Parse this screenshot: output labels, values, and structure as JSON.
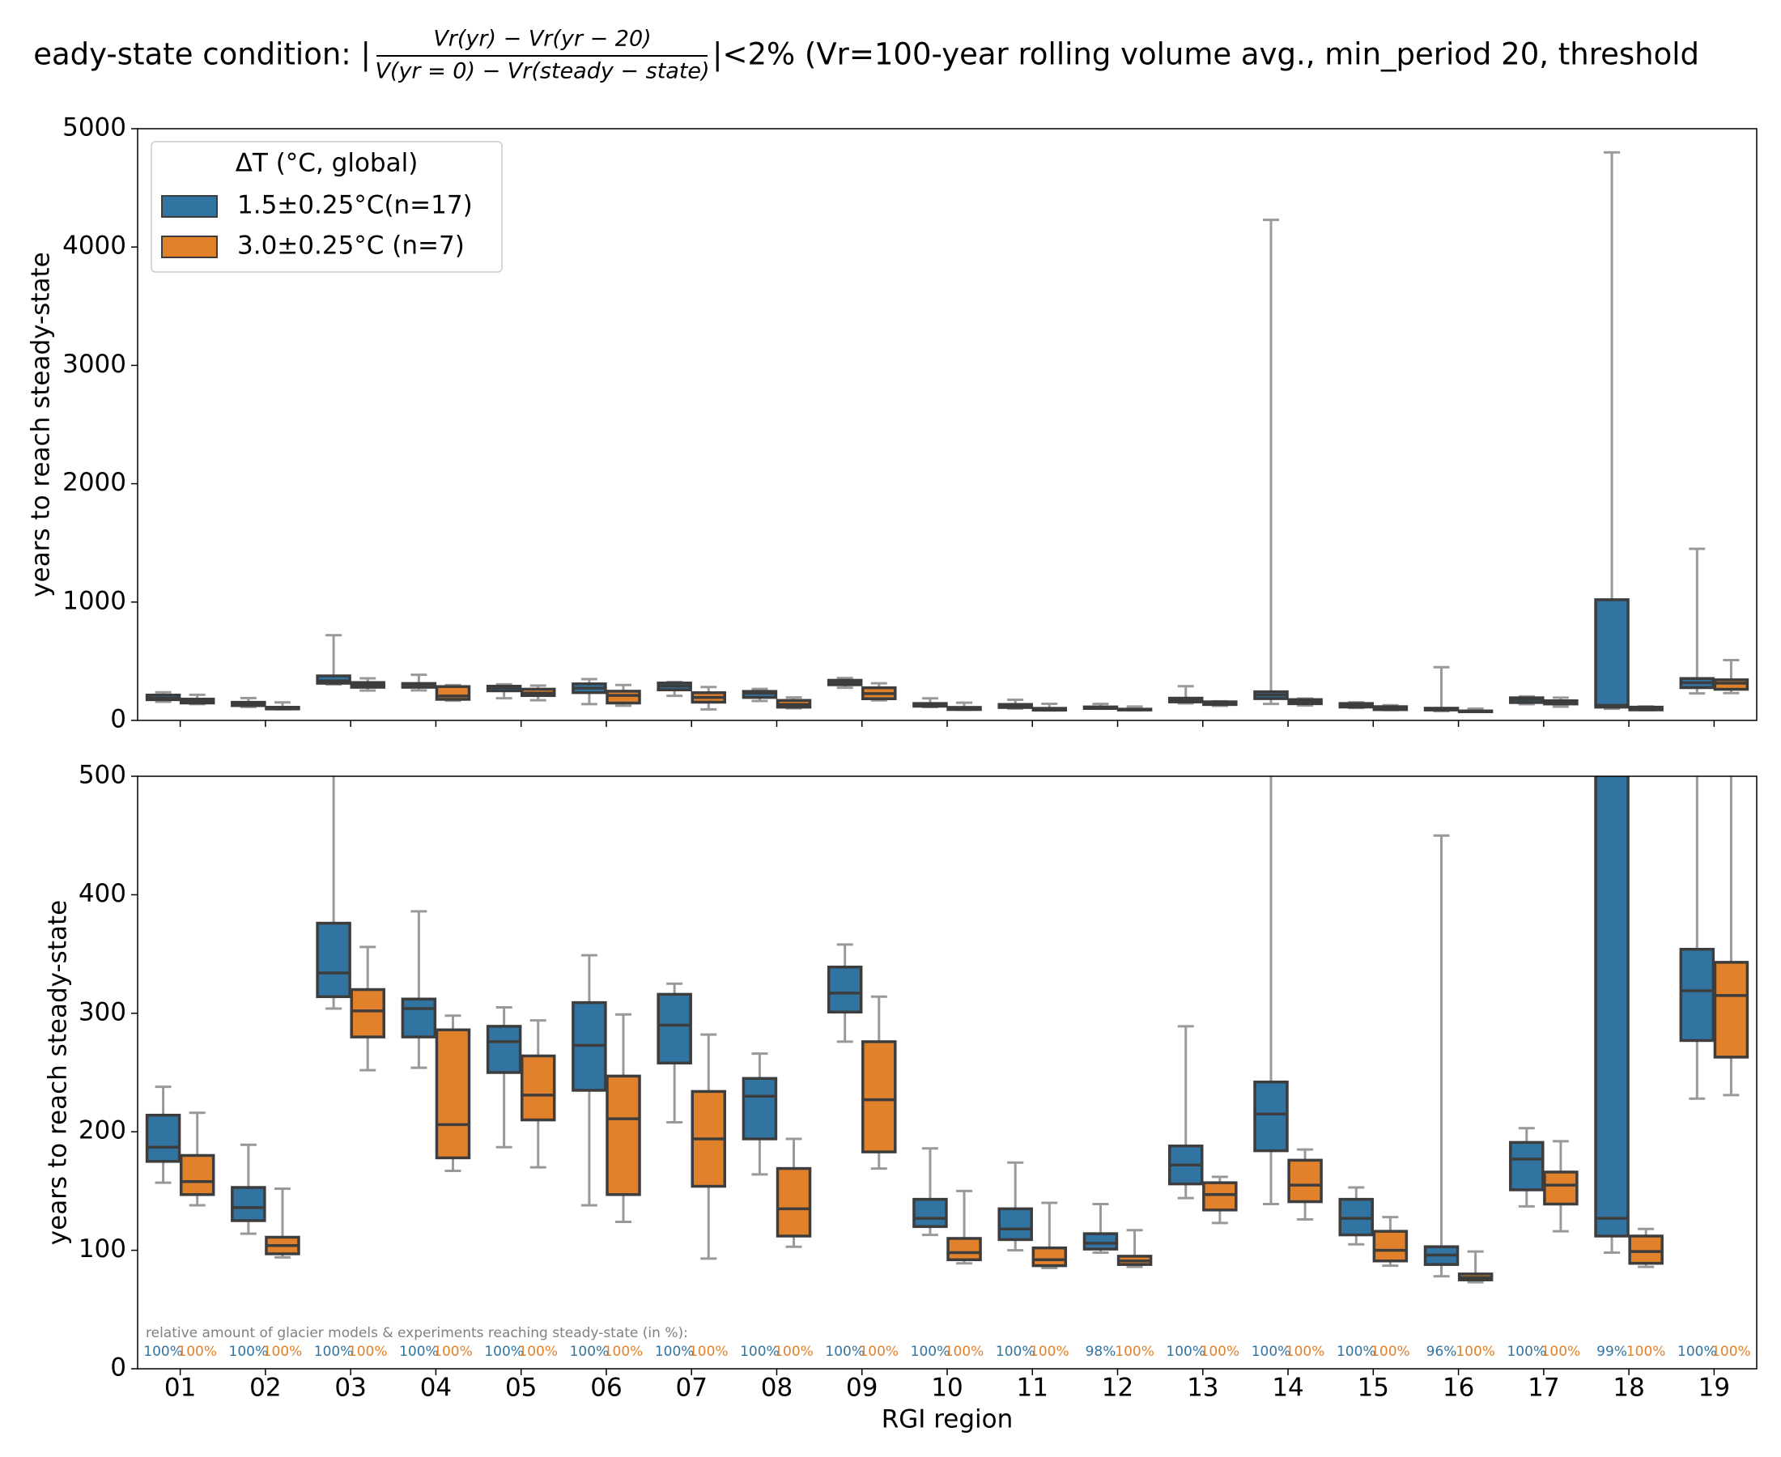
{
  "chart_data": {
    "type": "box",
    "title_prefix": "eady-state condition:  |",
    "title_numerator": "Vr(yr) − Vr(yr − 20)",
    "title_denominator": "V(yr = 0) − Vr(steady − state)",
    "title_suffix": "|<2% (Vr=100-year rolling volume avg., min_period 20, threshold",
    "xlabel": "RGI region",
    "legend_title": "ΔT (°C, global)",
    "legend_position": "upper left",
    "note": "relative amount of glacier models & experiments reaching steady-state (in %):",
    "categories": [
      "01",
      "02",
      "03",
      "04",
      "05",
      "06",
      "07",
      "08",
      "09",
      "10",
      "11",
      "12",
      "13",
      "14",
      "15",
      "16",
      "17",
      "18",
      "19"
    ],
    "panels": [
      {
        "ylabel": "years to reach steady-state",
        "ylim": [
          0,
          5000
        ],
        "yticks": [
          0,
          1000,
          2000,
          3000,
          4000,
          5000
        ]
      },
      {
        "ylabel": "years to reach steady-state",
        "ylim": [
          0,
          500
        ],
        "yticks": [
          0,
          100,
          200,
          300,
          400,
          500
        ]
      }
    ],
    "series": [
      {
        "name": "1.5±0.25°C(n=17)",
        "color": "#3274a1",
        "whislo": [
          157,
          114,
          304,
          254,
          187,
          138,
          208,
          164,
          276,
          113,
          100,
          98,
          144,
          139,
          105,
          78,
          137,
          98,
          228
        ],
        "q1": [
          175,
          125,
          314,
          280,
          250,
          235,
          258,
          194,
          301,
          120,
          109,
          101,
          156,
          184,
          113,
          88,
          151,
          112,
          277
        ],
        "median": [
          187,
          136,
          334,
          304,
          276,
          273,
          290,
          230,
          317,
          127,
          118,
          106,
          172,
          215,
          127,
          96,
          177,
          127,
          319
        ],
        "q3": [
          214,
          153,
          376,
          312,
          289,
          309,
          316,
          245,
          339,
          143,
          135,
          114,
          188,
          242,
          143,
          103,
          191,
          1020,
          354
        ],
        "whishi": [
          238,
          189,
          720,
          386,
          305,
          349,
          325,
          266,
          358,
          186,
          174,
          139,
          289,
          4230,
          153,
          450,
          203,
          4800,
          1450
        ],
        "share_labels": [
          "100%",
          "100%",
          "100%",
          "100%",
          "100%",
          "100%",
          "100%",
          "100%",
          "100%",
          "100%",
          "100%",
          "98%",
          "100%",
          "100%",
          "100%",
          "96%",
          "100%",
          "99%",
          "100%"
        ]
      },
      {
        "name": "3.0±0.25°C (n=7)",
        "color": "#e1812c",
        "whislo": [
          138,
          94,
          252,
          167,
          170,
          124,
          93,
          103,
          169,
          89,
          85,
          86,
          123,
          126,
          87,
          73,
          116,
          86,
          231
        ],
        "q1": [
          147,
          97,
          280,
          178,
          210,
          147,
          154,
          112,
          183,
          92,
          87,
          88,
          134,
          141,
          91,
          75,
          139,
          89,
          263
        ],
        "median": [
          158,
          104,
          302,
          206,
          231,
          211,
          194,
          135,
          227,
          98,
          92,
          91,
          147,
          155,
          100,
          77,
          155,
          99,
          315
        ],
        "q3": [
          180,
          111,
          320,
          286,
          264,
          247,
          234,
          169,
          276,
          110,
          102,
          95,
          157,
          176,
          116,
          80,
          166,
          112,
          343
        ],
        "whishi": [
          216,
          152,
          356,
          298,
          294,
          299,
          282,
          194,
          314,
          150,
          140,
          117,
          162,
          185,
          128,
          99,
          192,
          118,
          510
        ],
        "share_labels": [
          "100%",
          "100%",
          "100%",
          "100%",
          "100%",
          "100%",
          "100%",
          "100%",
          "100%",
          "100%",
          "100%",
          "100%",
          "100%",
          "100%",
          "100%",
          "100%",
          "100%",
          "100%",
          "100%"
        ]
      }
    ]
  }
}
